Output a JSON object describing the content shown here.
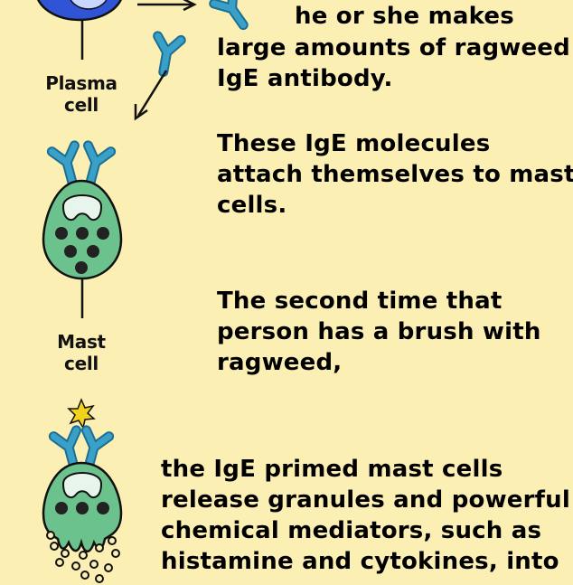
{
  "colors": {
    "background": "#fcefb3",
    "cell_fill": "#6cc28c",
    "antibody": "#3aa0c8",
    "plasma_cell": "#2f55d6",
    "allergen": "#f3d21a"
  },
  "labels": {
    "plasma": [
      "Plasma",
      "cell"
    ],
    "mast": [
      "Mast",
      "cell"
    ]
  },
  "text": {
    "p1": [
      "he or she makes",
      "large amounts of  ragweed",
      "IgE antibody."
    ],
    "p2": [
      "These IgE molecules",
      "attach themselves to mast",
      "cells."
    ],
    "p3": [
      "The second time that",
      "person has a brush with",
      "ragweed,"
    ],
    "p4": [
      "the IgE primed mast cells",
      "release granules and powerful",
      "chemical mediators, such as",
      "histamine and cytokines, into"
    ]
  },
  "icons": {
    "plasma_cell": "plasma-cell-icon",
    "mast_cell": "mast-cell-icon",
    "degranulating_cell": "degranulating-mast-cell-icon",
    "antibody": "ige-antibody-icon",
    "allergen": "ragweed-pollen-icon"
  }
}
